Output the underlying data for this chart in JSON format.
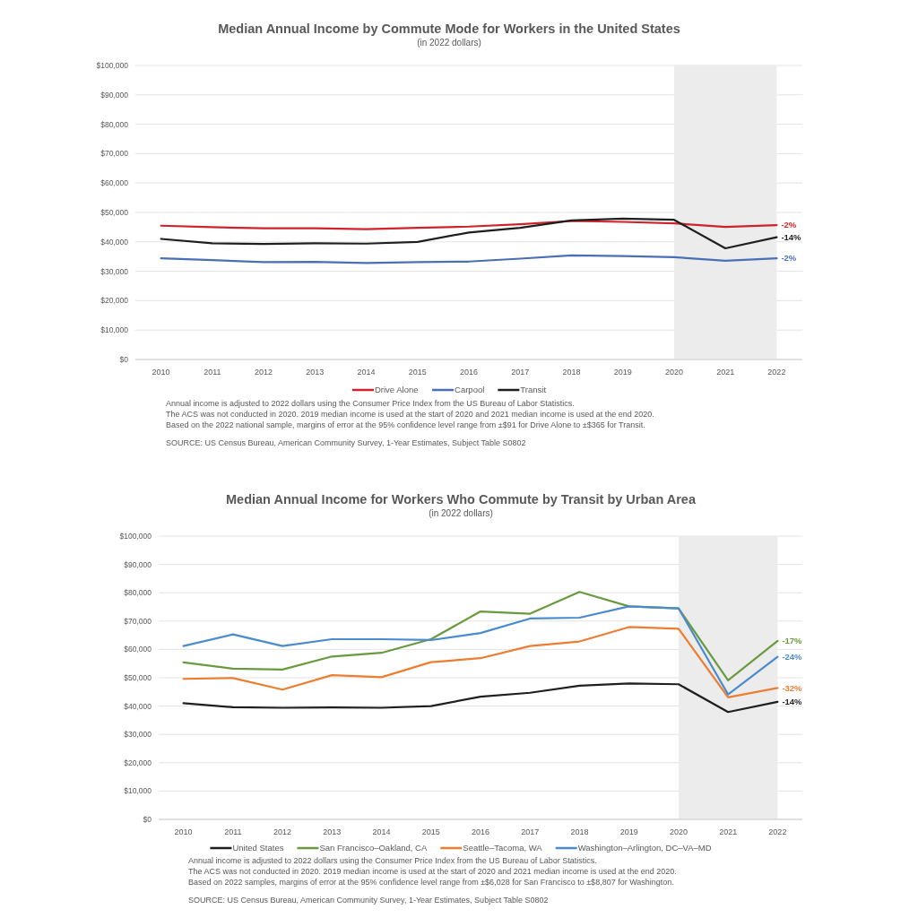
{
  "chart_data": [
    {
      "type": "line",
      "title": "Median Annual Income by Commute Mode for Workers in the United States",
      "subtitle": "(in 2022 dollars)",
      "categories": [
        "2010",
        "2011",
        "2012",
        "2013",
        "2014",
        "2015",
        "2016",
        "2017",
        "2018",
        "2019",
        "2020",
        "2021",
        "2022"
      ],
      "series": [
        {
          "name": "Drive Alone",
          "color": "#d0222a",
          "values": [
            45500,
            45000,
            44600,
            44600,
            44300,
            44800,
            45200,
            46000,
            47100,
            46800,
            46300,
            45100,
            45700
          ]
        },
        {
          "name": "Carpool",
          "color": "#4a6fb5",
          "values": [
            34400,
            33800,
            33100,
            33200,
            32800,
            33100,
            33300,
            34300,
            35400,
            35200,
            34800,
            33600,
            34400
          ]
        },
        {
          "name": "Transit",
          "color": "#1f1f1f",
          "values": [
            41000,
            39500,
            39300,
            39500,
            39400,
            40000,
            43200,
            44800,
            47300,
            47900,
            47500,
            37800,
            41600
          ]
        }
      ],
      "ylim": [
        0,
        100000
      ],
      "yticks": [
        {
          "value": 0,
          "label": "$0"
        },
        {
          "value": 10000,
          "label": "$10,000"
        },
        {
          "value": 20000,
          "label": "$20,000"
        },
        {
          "value": 30000,
          "label": "$30,000"
        },
        {
          "value": 40000,
          "label": "$40,000"
        },
        {
          "value": 50000,
          "label": "$50,000"
        },
        {
          "value": 60000,
          "label": "$60,000"
        },
        {
          "value": 70000,
          "label": "$70,000"
        },
        {
          "value": 80000,
          "label": "$80,000"
        },
        {
          "value": 90000,
          "label": "$90,000"
        },
        {
          "value": 100000,
          "label": "$100,000"
        }
      ],
      "grid": "y",
      "legend": "bottom",
      "bands": [
        {
          "axis": "x",
          "from": "2020",
          "to": "2022",
          "color": "#ececec"
        }
      ],
      "annotations": [
        {
          "text": "-2%",
          "x": "2022",
          "y": 45700
        },
        {
          "text": "-14%",
          "x": "2022",
          "y": 41600
        },
        {
          "text": "-2%",
          "x": "2022",
          "y": 34400
        },
        "Annual income is adjusted to 2022 dollars using the Consumer Price Index from the US Bureau of Labor Statistics.",
        "The ACS was not conducted in 2020. 2019 median income is used at the start of 2020 and 2021 median income is used at the end 2020.",
        "Based on the 2022 national sample, margins of error at the 95% confidence level range from ±$91 for Drive Alone to ±$365 for Transit.",
        "SOURCE: US Census Bureau, American Community Survey, 1-Year Estimates, Subject Table S0802"
      ]
    },
    {
      "type": "line",
      "title": "Median Annual Income for Workers Who Commute by Transit by Urban Area",
      "subtitle": "(in 2022 dollars)",
      "categories": [
        "2010",
        "2011",
        "2012",
        "2013",
        "2014",
        "2015",
        "2016",
        "2017",
        "2018",
        "2019",
        "2020",
        "2021",
        "2022"
      ],
      "series": [
        {
          "name": "United States",
          "color": "#1f1f1f",
          "values": [
            41000,
            39600,
            39400,
            39500,
            39400,
            40000,
            43300,
            44700,
            47200,
            48000,
            47700,
            37900,
            41500
          ]
        },
        {
          "name": "San Francisco–Oakland, CA",
          "color": "#6a9a3f",
          "values": [
            55400,
            53200,
            52900,
            57500,
            58800,
            63600,
            73400,
            72600,
            80300,
            75200,
            74500,
            49100,
            63000
          ]
        },
        {
          "name": "Seattle–Tacoma, WA",
          "color": "#ed7d31",
          "values": [
            49600,
            49900,
            45800,
            50900,
            50200,
            55500,
            56900,
            61200,
            62800,
            67900,
            67300,
            43100,
            46400
          ]
        },
        {
          "name": "Washington–Arlington, DC–VA–MD",
          "color": "#4a8bcf",
          "values": [
            61200,
            65300,
            61200,
            63600,
            63600,
            63300,
            65800,
            70900,
            71200,
            75200,
            74500,
            44100,
            57400
          ]
        }
      ],
      "ylim": [
        0,
        100000
      ],
      "yticks": [
        {
          "value": 0,
          "label": "$0"
        },
        {
          "value": 10000,
          "label": "$10,000"
        },
        {
          "value": 20000,
          "label": "$20,000"
        },
        {
          "value": 30000,
          "label": "$30,000"
        },
        {
          "value": 40000,
          "label": "$40,000"
        },
        {
          "value": 50000,
          "label": "$50,000"
        },
        {
          "value": 60000,
          "label": "$60,000"
        },
        {
          "value": 70000,
          "label": "$70,000"
        },
        {
          "value": 80000,
          "label": "$80,000"
        },
        {
          "value": 90000,
          "label": "$90,000"
        },
        {
          "value": 100000,
          "label": "$100,000"
        }
      ],
      "grid": "y",
      "legend": "bottom",
      "bands": [
        {
          "axis": "x",
          "from": "2020",
          "to": "2022",
          "color": "#ececec"
        }
      ],
      "annotations": [
        {
          "text": "-17%",
          "x": "2022",
          "y": 63000
        },
        {
          "text": "-24%",
          "x": "2022",
          "y": 57400
        },
        {
          "text": "-32%",
          "x": "2022",
          "y": 46400
        },
        {
          "text": "-14%",
          "x": "2022",
          "y": 41500
        },
        "Annual income is adjusted to 2022 dollars using the Consumer Price Index from the US Bureau of Labor Statistics.",
        "The ACS was not conducted in 2020. 2019 median income is used at the start of 2020 and 2021 median income is used at the end 2020.",
        "Based on 2022 samples, margins of error at the 95% confidence level range from ±$6,028 for San Francisco to ±$8,807 for Washington.",
        "SOURCE: US Census Bureau, American Community Survey, 1-Year Estimates, Subject Table S0802"
      ]
    }
  ]
}
